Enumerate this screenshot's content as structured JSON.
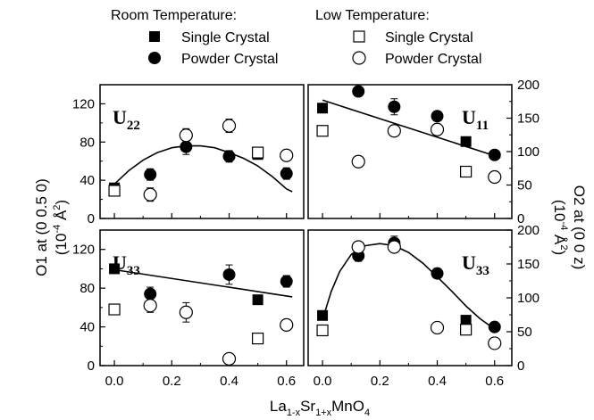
{
  "legend": {
    "room_temperature": "Room Temperature:",
    "low_temperature": "Low Temperature:",
    "single_crystal": "Single Crystal",
    "powder_crystal": "Powder Crystal"
  },
  "axes": {
    "left_title_line1": "O1 at (0 0.5 0)",
    "left_title_line2_pre": "(10",
    "left_title_line2_sup": "-4",
    "left_title_line2_post": " Å",
    "left_title_line2_sup2": "2",
    "left_title_line2_end": ")",
    "right_title_line1": "O2 at (0 0 z)",
    "right_title_line2_pre": "(10",
    "right_title_line2_sup": "-4",
    "right_title_line2_post": " Å",
    "right_title_line2_sup2": "2",
    "right_title_line2_end": ")",
    "xlabel_parts": [
      "La",
      "1-x",
      "Sr",
      "1+x",
      "MnO",
      "4"
    ]
  },
  "chart_data": [
    {
      "type": "scatter",
      "panel": "top-left",
      "label_main": "U",
      "label_sub": "22",
      "xlim": [
        -0.05,
        0.66
      ],
      "ylim": [
        0,
        140
      ],
      "xticks": [
        "0.0",
        "0.2",
        "0.4",
        "0.6"
      ],
      "yticks": [
        "0",
        "40",
        "80",
        "120"
      ],
      "series": [
        {
          "name": "Single Crystal",
          "temperature": "Room Temperature",
          "marker": "filled-square",
          "x": [
            0.0,
            0.5
          ],
          "y": [
            32,
            67
          ],
          "err": [
            0,
            0
          ]
        },
        {
          "name": "Powder Crystal",
          "temperature": "Room Temperature",
          "marker": "filled-circle",
          "x": [
            0.125,
            0.25,
            0.4,
            0.6
          ],
          "y": [
            46,
            75,
            65,
            47
          ],
          "err": [
            6,
            8,
            6,
            6
          ]
        },
        {
          "name": "Single Crystal",
          "temperature": "Low Temperature",
          "marker": "open-square",
          "x": [
            0.0,
            0.5
          ],
          "y": [
            29,
            69
          ],
          "err": [
            0,
            0
          ]
        },
        {
          "name": "Powder Crystal",
          "temperature": "Low Temperature",
          "marker": "open-circle",
          "x": [
            0.125,
            0.25,
            0.4,
            0.6
          ],
          "y": [
            25,
            87,
            97,
            66
          ],
          "err": [
            7,
            7,
            7,
            5
          ]
        }
      ],
      "fit": {
        "x": [
          0.0,
          0.05,
          0.1,
          0.15,
          0.2,
          0.25,
          0.3,
          0.35,
          0.4,
          0.45,
          0.5,
          0.55,
          0.6,
          0.62
        ],
        "y": [
          36,
          50,
          61,
          69,
          74,
          76,
          76,
          74,
          69,
          63,
          55,
          44,
          31,
          28
        ]
      }
    },
    {
      "type": "scatter",
      "panel": "top-right",
      "label_main": "U",
      "label_sub": "11",
      "xlim": [
        -0.05,
        0.66
      ],
      "ylim": [
        0,
        200
      ],
      "xticks": [
        "0.0",
        "0.2",
        "0.4",
        "0.6"
      ],
      "yticks": [
        "0",
        "50",
        "100",
        "150",
        "200"
      ],
      "series": [
        {
          "name": "Single Crystal",
          "temperature": "Room Temperature",
          "marker": "filled-square",
          "x": [
            0.0,
            0.5
          ],
          "y": [
            165,
            115
          ],
          "err": [
            0,
            0
          ]
        },
        {
          "name": "Powder Crystal",
          "temperature": "Room Temperature",
          "marker": "filled-circle",
          "x": [
            0.125,
            0.25,
            0.4,
            0.6
          ],
          "y": [
            190,
            167,
            153,
            95
          ],
          "err": [
            6,
            12,
            6,
            5
          ]
        },
        {
          "name": "Single Crystal",
          "temperature": "Low Temperature",
          "marker": "open-square",
          "x": [
            0.0,
            0.5
          ],
          "y": [
            131,
            70
          ],
          "err": [
            0,
            0
          ]
        },
        {
          "name": "Powder Crystal",
          "temperature": "Low Temperature",
          "marker": "open-circle",
          "x": [
            0.125,
            0.25,
            0.4,
            0.6
          ],
          "y": [
            85,
            131,
            133,
            62
          ],
          "err": [
            6,
            8,
            6,
            5
          ]
        }
      ],
      "fit": {
        "x": [
          0.0,
          0.62
        ],
        "y": [
          177,
          91
        ]
      }
    },
    {
      "type": "scatter",
      "panel": "bottom-left",
      "label_main": "U",
      "label_sub": "33",
      "xlim": [
        -0.05,
        0.66
      ],
      "ylim": [
        0,
        140
      ],
      "xticks": [
        "0.0",
        "0.2",
        "0.4",
        "0.6"
      ],
      "yticks": [
        "0",
        "40",
        "80",
        "120"
      ],
      "series": [
        {
          "name": "Single Crystal",
          "temperature": "Room Temperature",
          "marker": "filled-square",
          "x": [
            0.0,
            0.5
          ],
          "y": [
            100,
            68
          ],
          "err": [
            0,
            0
          ]
        },
        {
          "name": "Powder Crystal",
          "temperature": "Room Temperature",
          "marker": "filled-circle",
          "x": [
            0.125,
            0.4,
            0.6
          ],
          "y": [
            74,
            94,
            87
          ],
          "err": [
            7,
            10,
            6
          ]
        },
        {
          "name": "Single Crystal",
          "temperature": "Low Temperature",
          "marker": "open-square",
          "x": [
            0.0,
            0.5
          ],
          "y": [
            58,
            28
          ],
          "err": [
            0,
            0
          ]
        },
        {
          "name": "Powder Crystal",
          "temperature": "Low Temperature",
          "marker": "open-circle",
          "x": [
            0.125,
            0.25,
            0.4,
            0.6
          ],
          "y": [
            62,
            55,
            7,
            42
          ],
          "err": [
            7,
            10,
            5,
            5
          ]
        }
      ],
      "fit": {
        "x": [
          0.0,
          0.62
        ],
        "y": [
          99,
          71
        ]
      }
    },
    {
      "type": "scatter",
      "panel": "bottom-right",
      "label_main": "U",
      "label_sub": "33",
      "xlim": [
        -0.05,
        0.66
      ],
      "ylim": [
        0,
        200
      ],
      "xticks": [
        "0.0",
        "0.2",
        "0.4",
        "0.6"
      ],
      "yticks": [
        "0",
        "50",
        "100",
        "150",
        "200"
      ],
      "series": [
        {
          "name": "Single Crystal",
          "temperature": "Room Temperature",
          "marker": "filled-square",
          "x": [
            0.0,
            0.5
          ],
          "y": [
            74,
            67
          ],
          "err": [
            0,
            0
          ]
        },
        {
          "name": "Powder Crystal",
          "temperature": "Room Temperature",
          "marker": "filled-circle",
          "x": [
            0.125,
            0.25,
            0.4,
            0.6
          ],
          "y": [
            162,
            181,
            136,
            57
          ],
          "err": [
            8,
            10,
            6,
            5
          ]
        },
        {
          "name": "Single Crystal",
          "temperature": "Low Temperature",
          "marker": "open-square",
          "x": [
            0.0,
            0.5
          ],
          "y": [
            52,
            53
          ],
          "err": [
            0,
            0
          ]
        },
        {
          "name": "Powder Crystal",
          "temperature": "Low Temperature",
          "marker": "open-circle",
          "x": [
            0.125,
            0.25,
            0.4,
            0.6
          ],
          "y": [
            175,
            175,
            56,
            33
          ],
          "err": [
            7,
            8,
            5,
            5
          ]
        }
      ],
      "fit": {
        "x": [
          0.0,
          0.03,
          0.06,
          0.1,
          0.15,
          0.2,
          0.25,
          0.3,
          0.35,
          0.4,
          0.45,
          0.5,
          0.55,
          0.6
        ],
        "y": [
          68,
          109,
          139,
          164,
          177,
          180,
          177,
          167,
          151,
          131,
          110,
          88,
          69,
          54
        ]
      }
    }
  ]
}
